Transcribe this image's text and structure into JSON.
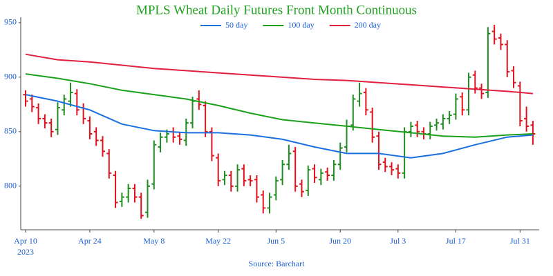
{
  "chart_data": {
    "type": "ohlc",
    "title": "MPLS Wheat Daily Futures Front Month Continuous",
    "source": "Source: Barchart",
    "year": "2023",
    "up_color": "#1e8c1e",
    "down_color": "#e3101c",
    "ylim": [
      760,
      955
    ],
    "yticks": [
      800,
      850,
      900,
      950
    ],
    "x": [
      "2023-04-10",
      "2023-04-11",
      "2023-04-12",
      "2023-04-13",
      "2023-04-14",
      "2023-04-17",
      "2023-04-18",
      "2023-04-19",
      "2023-04-20",
      "2023-04-21",
      "2023-04-24",
      "2023-04-25",
      "2023-04-26",
      "2023-04-27",
      "2023-04-28",
      "2023-05-01",
      "2023-05-02",
      "2023-05-03",
      "2023-05-04",
      "2023-05-05",
      "2023-05-08",
      "2023-05-09",
      "2023-05-10",
      "2023-05-11",
      "2023-05-12",
      "2023-05-15",
      "2023-05-16",
      "2023-05-17",
      "2023-05-18",
      "2023-05-19",
      "2023-05-22",
      "2023-05-23",
      "2023-05-24",
      "2023-05-25",
      "2023-05-26",
      "2023-05-30",
      "2023-05-31",
      "2023-06-01",
      "2023-06-02",
      "2023-06-05",
      "2023-06-06",
      "2023-06-07",
      "2023-06-08",
      "2023-06-09",
      "2023-06-12",
      "2023-06-13",
      "2023-06-14",
      "2023-06-15",
      "2023-06-16",
      "2023-06-20",
      "2023-06-21",
      "2023-06-22",
      "2023-06-23",
      "2023-06-26",
      "2023-06-27",
      "2023-06-28",
      "2023-06-29",
      "2023-06-30",
      "2023-07-03",
      "2023-07-05",
      "2023-07-06",
      "2023-07-07",
      "2023-07-10",
      "2023-07-11",
      "2023-07-12",
      "2023-07-13",
      "2023-07-14",
      "2023-07-17",
      "2023-07-18",
      "2023-07-19",
      "2023-07-20",
      "2023-07-21",
      "2023-07-24",
      "2023-07-25",
      "2023-07-26",
      "2023-07-27",
      "2023-07-28",
      "2023-07-31",
      "2023-08-01",
      "2023-08-02"
    ],
    "xticks": [
      {
        "value": "2023-04-10",
        "label": "Apr 10"
      },
      {
        "value": "2023-04-24",
        "label": "Apr 24"
      },
      {
        "value": "2023-05-08",
        "label": "May 8"
      },
      {
        "value": "2023-05-22",
        "label": "May 22"
      },
      {
        "value": "2023-06-05",
        "label": "Jun 5"
      },
      {
        "value": "2023-06-20",
        "label": "Jun 20"
      },
      {
        "value": "2023-07-03",
        "label": "Jul 3"
      },
      {
        "value": "2023-07-17",
        "label": "Jul 17"
      },
      {
        "value": "2023-07-31",
        "label": "Jul 31"
      }
    ],
    "open": [
      884,
      880,
      872,
      862,
      858,
      852,
      870,
      878,
      885,
      872,
      860,
      850,
      842,
      830,
      810,
      786,
      790,
      798,
      790,
      776,
      802,
      836,
      845,
      850,
      846,
      842,
      858,
      880,
      874,
      850,
      826,
      806,
      810,
      800,
      816,
      806,
      806,
      792,
      780,
      792,
      806,
      820,
      832,
      802,
      796,
      816,
      806,
      813,
      810,
      820,
      836,
      856,
      878,
      886,
      868,
      846,
      822,
      818,
      816,
      812,
      850,
      856,
      850,
      848,
      856,
      857,
      862,
      866,
      882,
      870,
      902,
      890,
      886,
      942,
      936,
      930,
      906,
      892,
      862,
      856
    ],
    "high": [
      888,
      884,
      876,
      866,
      862,
      877,
      884,
      895,
      889,
      876,
      864,
      854,
      846,
      834,
      814,
      794,
      802,
      802,
      794,
      806,
      842,
      849,
      852,
      854,
      850,
      862,
      882,
      888,
      878,
      854,
      830,
      814,
      814,
      820,
      820,
      810,
      810,
      796,
      794,
      809,
      824,
      838,
      836,
      806,
      819,
      820,
      816,
      817,
      824,
      840,
      861,
      884,
      895,
      890,
      872,
      850,
      826,
      822,
      820,
      854,
      859,
      860,
      854,
      859,
      862,
      866,
      869,
      885,
      886,
      904,
      906,
      894,
      946,
      948,
      940,
      934,
      910,
      896,
      873,
      860
    ],
    "low": [
      873,
      868,
      857,
      853,
      845,
      847,
      865,
      873,
      865,
      857,
      843,
      837,
      827,
      807,
      780,
      781,
      785,
      785,
      770,
      771,
      797,
      831,
      840,
      840,
      838,
      837,
      853,
      870,
      845,
      823,
      800,
      801,
      795,
      795,
      800,
      800,
      785,
      775,
      775,
      787,
      801,
      815,
      795,
      790,
      791,
      803,
      801,
      805,
      805,
      815,
      831,
      851,
      873,
      865,
      840,
      815,
      813,
      810,
      807,
      807,
      845,
      845,
      843,
      843,
      851,
      852,
      857,
      861,
      865,
      865,
      885,
      880,
      881,
      930,
      925,
      900,
      890,
      855,
      850,
      838
    ],
    "close": [
      878,
      873,
      862,
      858,
      850,
      872,
      880,
      886,
      870,
      862,
      848,
      842,
      832,
      812,
      785,
      790,
      798,
      790,
      773,
      800,
      838,
      845,
      848,
      845,
      843,
      858,
      878,
      875,
      850,
      828,
      805,
      810,
      800,
      815,
      805,
      805,
      790,
      780,
      790,
      805,
      820,
      830,
      800,
      795,
      815,
      808,
      812,
      810,
      820,
      835,
      855,
      880,
      885,
      870,
      845,
      820,
      818,
      815,
      812,
      850,
      855,
      850,
      848,
      855,
      858,
      862,
      865,
      880,
      870,
      900,
      890,
      885,
      940,
      935,
      930,
      905,
      895,
      860,
      855,
      848
    ],
    "series": [
      {
        "name": "50 day",
        "color": "#1a6fe0",
        "x": [
          "2023-04-10",
          "2023-04-17",
          "2023-04-24",
          "2023-05-01",
          "2023-05-08",
          "2023-05-15",
          "2023-05-22",
          "2023-05-30",
          "2023-06-06",
          "2023-06-13",
          "2023-06-21",
          "2023-06-28",
          "2023-07-06",
          "2023-07-13",
          "2023-07-20",
          "2023-07-27",
          "2023-08-02"
        ],
        "values": [
          884,
          878,
          870,
          857,
          851,
          849,
          849,
          847,
          843,
          836,
          830,
          830,
          826,
          830,
          838,
          845,
          847
        ]
      },
      {
        "name": "100 day",
        "color": "#1aa01a",
        "x": [
          "2023-04-10",
          "2023-04-17",
          "2023-04-24",
          "2023-05-01",
          "2023-05-08",
          "2023-05-15",
          "2023-05-22",
          "2023-05-30",
          "2023-06-06",
          "2023-06-13",
          "2023-06-21",
          "2023-06-28",
          "2023-07-06",
          "2023-07-13",
          "2023-07-20",
          "2023-07-27",
          "2023-08-02"
        ],
        "values": [
          903,
          899,
          894,
          888,
          884,
          880,
          874,
          867,
          861,
          858,
          855,
          852,
          849,
          846,
          845,
          847,
          848
        ]
      },
      {
        "name": "200 day",
        "color": "#e0203c",
        "x": [
          "2023-04-10",
          "2023-04-17",
          "2023-04-24",
          "2023-05-01",
          "2023-05-08",
          "2023-05-15",
          "2023-05-22",
          "2023-05-30",
          "2023-06-06",
          "2023-06-13",
          "2023-06-21",
          "2023-06-28",
          "2023-07-06",
          "2023-07-13",
          "2023-07-20",
          "2023-07-27",
          "2023-08-02"
        ],
        "values": [
          921,
          916,
          914,
          911,
          908,
          906,
          904,
          902,
          900,
          898,
          897,
          895,
          893,
          891,
          889,
          887,
          885
        ]
      }
    ]
  }
}
